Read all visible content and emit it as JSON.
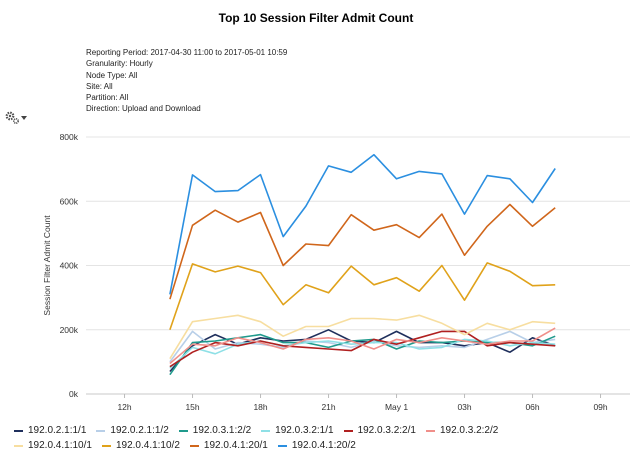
{
  "chart_data": {
    "type": "line",
    "title": "Top 10 Session Filter Admit Count",
    "meta": [
      "Reporting Period: 2017-04-30 11:00 to 2017-05-01 10:59",
      "Granularity: Hourly",
      "Node Type: All",
      "Site: All",
      "Partition: All",
      "Direction: Upload and Download"
    ],
    "xlabel": "",
    "ylabel": "Session Filter Admit Count",
    "x_ticks": [
      {
        "h": 12,
        "label": "12h"
      },
      {
        "h": 15,
        "label": "15h"
      },
      {
        "h": 18,
        "label": "18h"
      },
      {
        "h": 21,
        "label": "21h"
      },
      {
        "h": 24,
        "label": "May 1"
      },
      {
        "h": 27,
        "label": "03h"
      },
      {
        "h": 30,
        "label": "06h"
      },
      {
        "h": 33,
        "label": "09h"
      }
    ],
    "x_range": [
      10.3,
      34.3
    ],
    "y_ticks": [
      {
        "v": 0,
        "label": "0k"
      },
      {
        "v": 200000,
        "label": "200k"
      },
      {
        "v": 400000,
        "label": "400k"
      },
      {
        "v": 600000,
        "label": "600k"
      },
      {
        "v": 800000,
        "label": "800k"
      }
    ],
    "ylim": [
      0,
      800000
    ],
    "x": [
      14,
      15,
      16,
      17,
      18,
      19,
      20,
      21,
      22,
      23,
      24,
      25,
      26,
      27,
      28,
      29,
      30,
      31
    ],
    "series": [
      {
        "name": "192.0.2.1:1/1",
        "color": "#1f2f5c",
        "values": [
          70000,
          150000,
          185000,
          155000,
          175000,
          165000,
          170000,
          200000,
          165000,
          160000,
          195000,
          160000,
          160000,
          150000,
          160000,
          130000,
          175000,
          150000
        ]
      },
      {
        "name": "192.0.2.1:1/2",
        "color": "#b8cfe8",
        "values": [
          100000,
          195000,
          140000,
          160000,
          155000,
          145000,
          165000,
          160000,
          145000,
          165000,
          150000,
          145000,
          150000,
          145000,
          170000,
          195000,
          160000,
          170000
        ]
      },
      {
        "name": "192.0.3.1:2/2",
        "color": "#1f9a8c",
        "values": [
          60000,
          160000,
          165000,
          175000,
          185000,
          160000,
          160000,
          145000,
          165000,
          170000,
          140000,
          165000,
          160000,
          165000,
          160000,
          160000,
          150000,
          180000
        ]
      },
      {
        "name": "192.0.3.2:1/1",
        "color": "#8fe0e6",
        "values": [
          80000,
          145000,
          125000,
          155000,
          165000,
          150000,
          160000,
          165000,
          155000,
          160000,
          160000,
          140000,
          145000,
          170000,
          165000,
          150000,
          160000,
          155000
        ]
      },
      {
        "name": "192.0.3.2:2/1",
        "color": "#b02020",
        "values": [
          85000,
          130000,
          160000,
          150000,
          165000,
          150000,
          145000,
          140000,
          135000,
          170000,
          155000,
          175000,
          195000,
          195000,
          150000,
          160000,
          155000,
          150000
        ]
      },
      {
        "name": "192.0.3.2:2/2",
        "color": "#f08f8a",
        "values": [
          95000,
          155000,
          150000,
          175000,
          160000,
          140000,
          170000,
          175000,
          165000,
          140000,
          170000,
          160000,
          175000,
          165000,
          155000,
          165000,
          165000,
          205000
        ]
      },
      {
        "name": "192.0.4.1:10/1",
        "color": "#f7dea0",
        "values": [
          110000,
          225000,
          235000,
          245000,
          225000,
          180000,
          210000,
          210000,
          235000,
          235000,
          230000,
          245000,
          220000,
          185000,
          220000,
          200000,
          225000,
          220000
        ]
      },
      {
        "name": "192.0.4.1:10/2",
        "color": "#e0a21a",
        "values": [
          200000,
          405000,
          380000,
          398000,
          378000,
          278000,
          340000,
          315000,
          398000,
          340000,
          362000,
          320000,
          400000,
          292000,
          408000,
          382000,
          337000,
          340000
        ]
      },
      {
        "name": "192.0.4.1:20/1",
        "color": "#d0661b",
        "values": [
          295000,
          525000,
          572000,
          535000,
          565000,
          400000,
          467000,
          462000,
          558000,
          510000,
          527000,
          487000,
          560000,
          432000,
          522000,
          590000,
          522000,
          580000
        ]
      },
      {
        "name": "192.0.4.1:20/2",
        "color": "#2b8fe0",
        "values": [
          310000,
          682000,
          630000,
          633000,
          683000,
          490000,
          585000,
          710000,
          690000,
          745000,
          670000,
          693000,
          685000,
          560000,
          680000,
          670000,
          596000,
          702000
        ]
      }
    ],
    "legend_position": "bottom"
  },
  "toolbar": {
    "gear_icon": "gear-icon",
    "dropdown_icon": "caret-down-icon"
  }
}
